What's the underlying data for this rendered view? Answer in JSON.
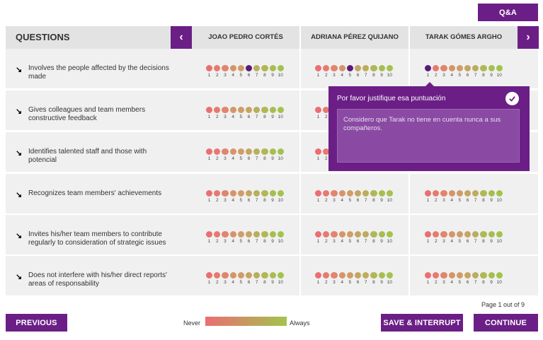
{
  "qa_label": "Q&A",
  "header": {
    "questions_label": "QUESTIONS",
    "prev_arrow": "‹",
    "next_arrow": "›",
    "columns": [
      "JOAO PEDRO CORTÉS",
      "ADRIANA PÉREZ QUIJANO",
      "TARAK GÓMES ARGHO"
    ]
  },
  "scale": {
    "numbers": [
      "1",
      "2",
      "3",
      "4",
      "5",
      "6",
      "7",
      "8",
      "9",
      "10"
    ],
    "colors": [
      "#ea6e72",
      "#e67a70",
      "#e1856c",
      "#d79469",
      "#cf9d66",
      "#c6a462",
      "#baad5c",
      "#b0b856",
      "#a8bd51",
      "#a3c34d"
    ],
    "selected_color": "#5a1a78"
  },
  "questions": [
    {
      "arrow": "↘",
      "text": "Involves the people affected by the decisions made",
      "ratings": [
        6,
        5,
        1
      ]
    },
    {
      "arrow": "↘",
      "text": "Gives colleagues and team members constructive feedback",
      "ratings": [
        null,
        null,
        null
      ]
    },
    {
      "arrow": "↘",
      "text": "Identifies talented staff and those with potencial",
      "ratings": [
        null,
        null,
        null
      ]
    },
    {
      "arrow": "↘",
      "text": "Recognizes team members' achievements",
      "ratings": [
        null,
        null,
        null
      ]
    },
    {
      "arrow": "↘",
      "text": "Invites his/her team members to contribute regularly to consideration of strategic issues",
      "ratings": [
        null,
        null,
        null
      ]
    },
    {
      "arrow": "↘",
      "text": "Does not interfere with his/her direct reports' areas of responsability",
      "ratings": [
        null,
        null,
        null
      ]
    }
  ],
  "popup": {
    "title": "Por favor justifique esa puntuación",
    "text": "Considero que Tarak no tiene en cuenta nunca a sus compañeros."
  },
  "page_info": "Page 1 out of 9",
  "legend": {
    "never": "Never",
    "always": "Always"
  },
  "buttons": {
    "previous": "PREVIOUS",
    "save": "SAVE & INTERRUPT",
    "continue": "CONTINUE"
  }
}
